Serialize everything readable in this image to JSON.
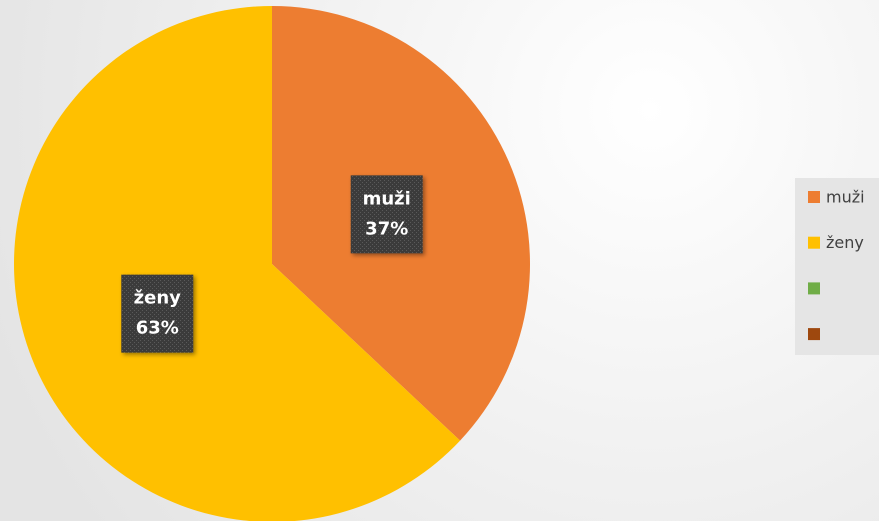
{
  "chart_data": {
    "type": "pie",
    "categories": [
      "muži",
      "ženy",
      null,
      null
    ],
    "values": [
      37,
      63,
      0,
      0
    ],
    "value_labels": [
      "37%",
      "63%",
      null,
      null
    ],
    "colors": [
      "#ED7D31",
      "#FFC000",
      "#70AD47",
      "#9E480E"
    ],
    "legend": "right"
  }
}
